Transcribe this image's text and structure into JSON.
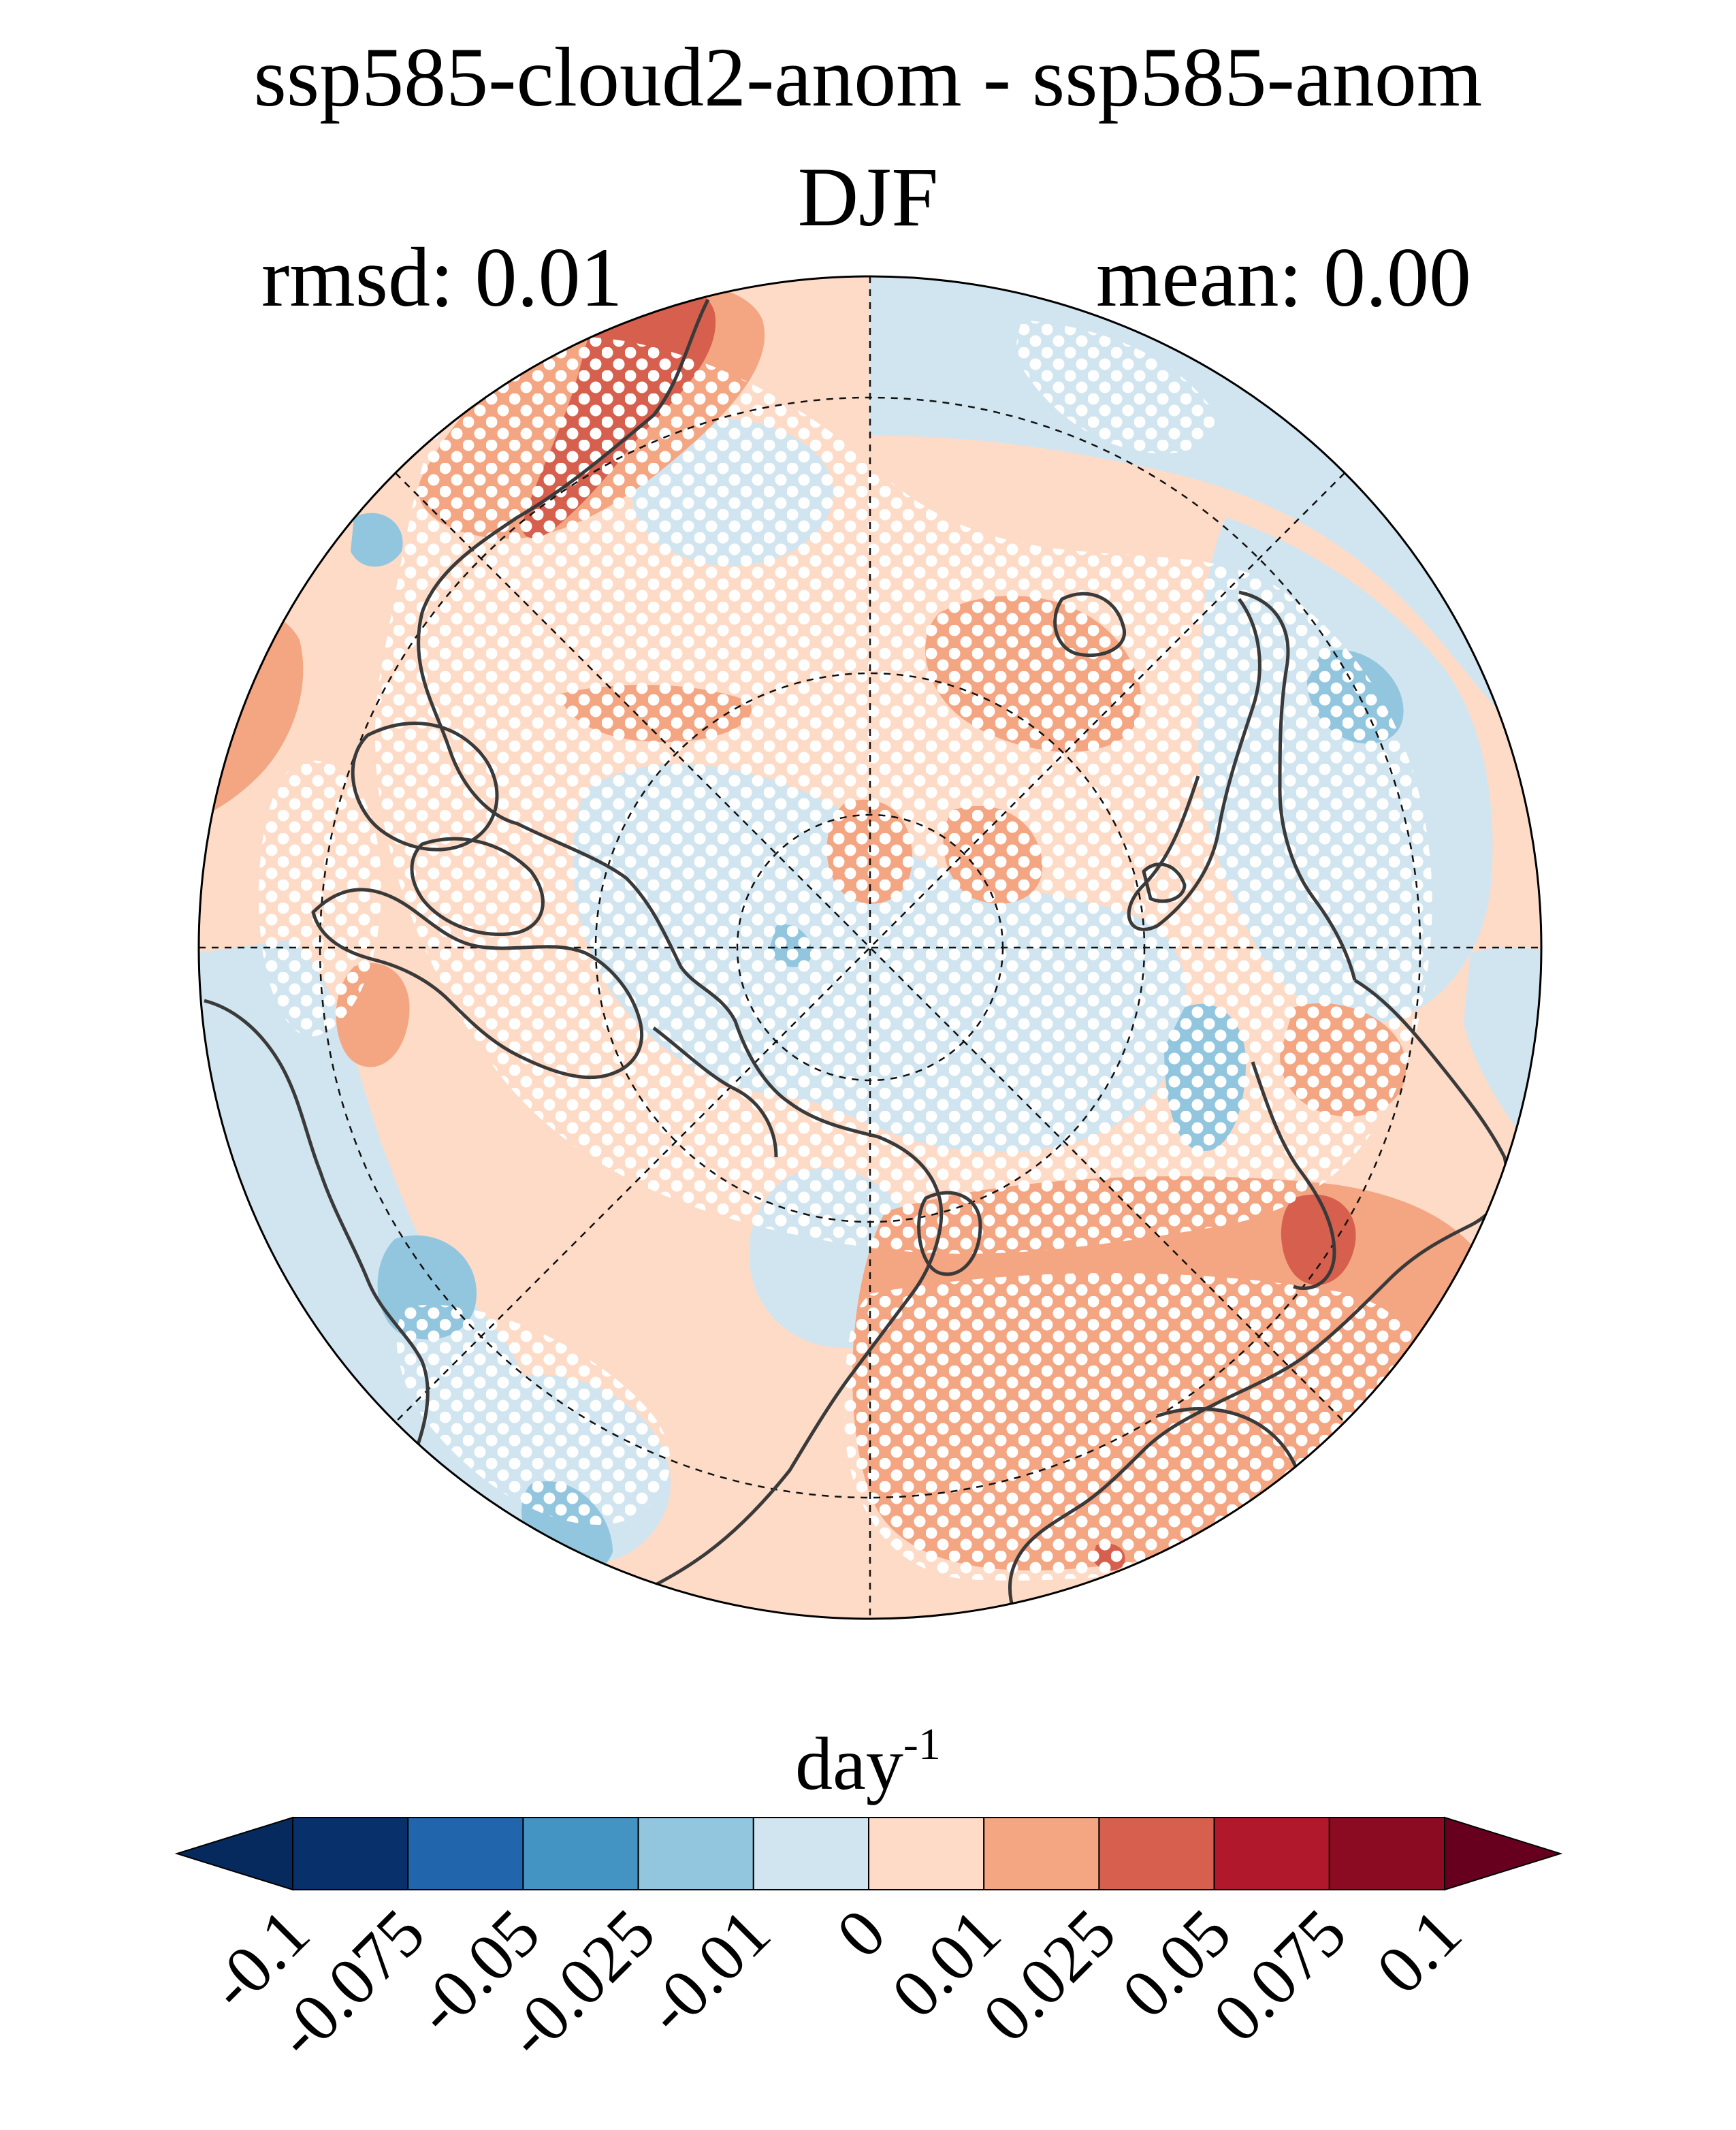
{
  "figure": {
    "title": "ssp585-cloud2-anom - ssp585-anom",
    "subtitle": "DJF",
    "rmsd_label": "rmsd: 0.01",
    "mean_label": "mean: 0.00",
    "units_base": "day",
    "units_exponent": "-1"
  },
  "colorbar": {
    "levels": [
      "-0.1",
      "-0.075",
      "-0.05",
      "-0.025",
      "-0.01",
      "0",
      "0.01",
      "0.025",
      "0.05",
      "0.075",
      "0.1"
    ],
    "colors": [
      "#072a5e",
      "#08306b",
      "#2166ac",
      "#4393c3",
      "#92c5de",
      "#d1e5f0",
      "#fddbc7",
      "#f4a582",
      "#d6604d",
      "#b2182b",
      "#8a0b22",
      "#67001f"
    ],
    "extend": "both"
  },
  "map": {
    "projection": "north polar stereographic",
    "stippling": "white dots",
    "coastline_color": "#3a3a3a",
    "fill_colors": {
      "neg_weak": "#d1e5f0",
      "neg_mod": "#92c5de",
      "pos_weak": "#fddbc7",
      "pos_mod": "#f4a582",
      "pos_strong": "#d6604d"
    }
  }
}
